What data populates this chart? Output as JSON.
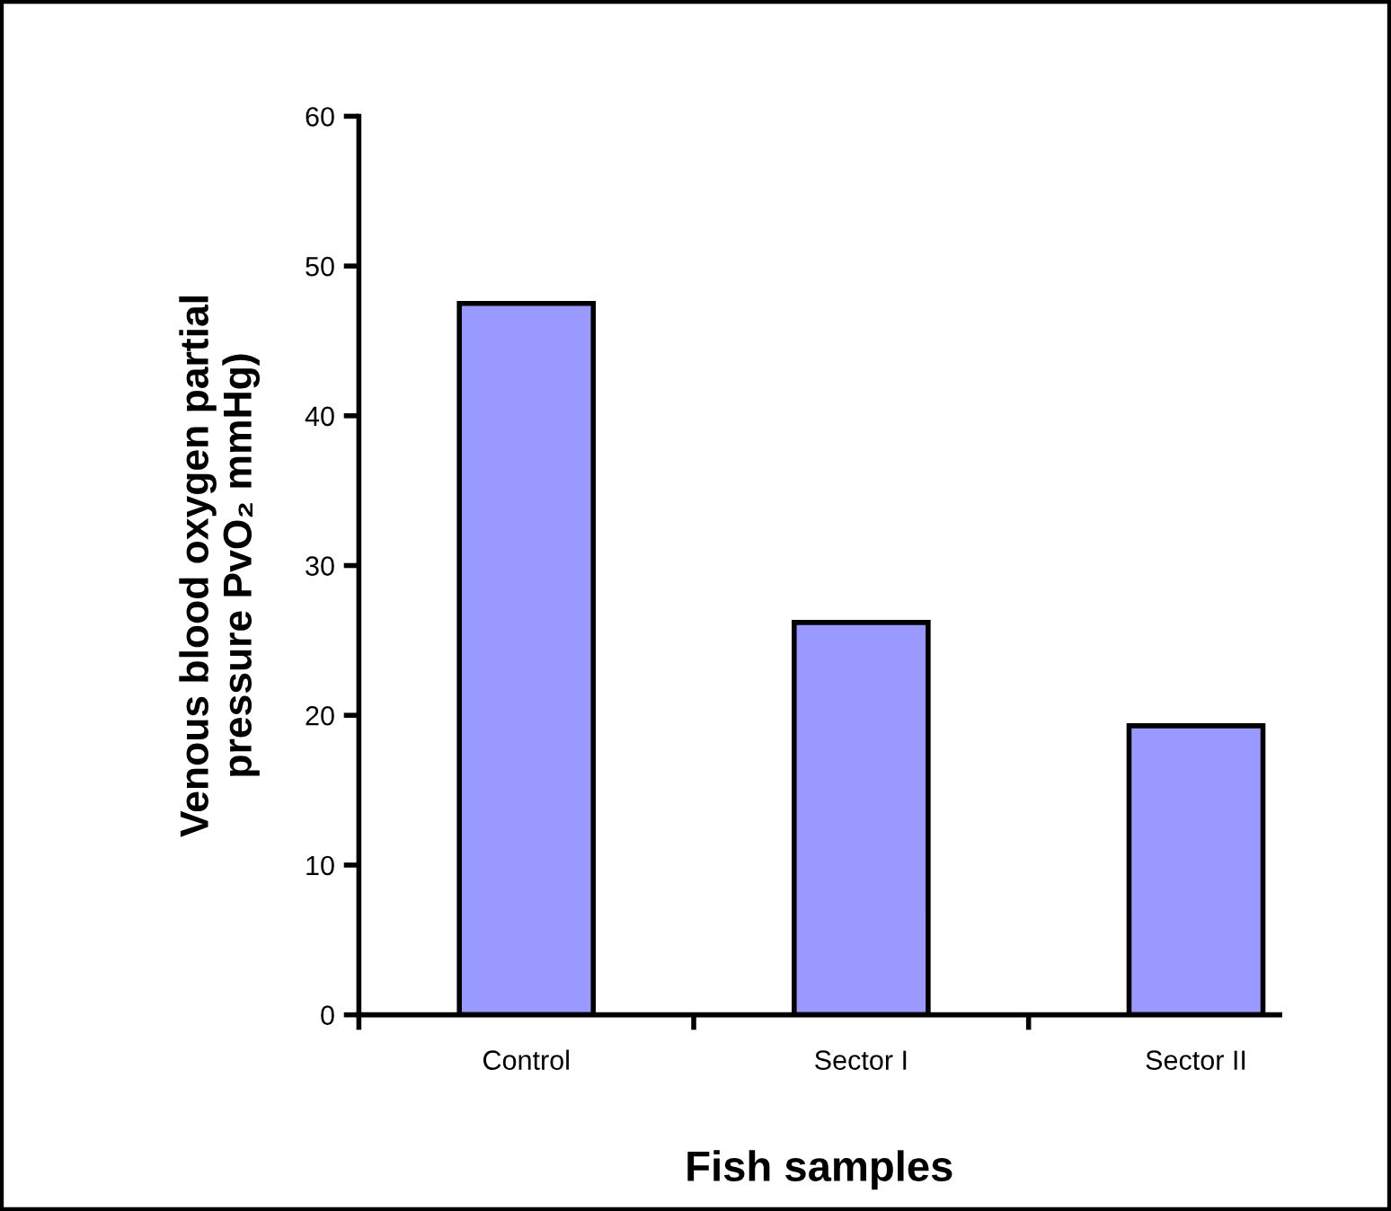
{
  "chart_data": {
    "type": "bar",
    "categories": [
      "Control",
      "Sector I",
      "Sector II"
    ],
    "values": [
      47.5,
      26.2,
      19.3
    ],
    "color": "#9999ff",
    "xlabel": "Fish samples",
    "ylabel": "Venous blood oxygen partial\npressure PvO₂ mmHg)",
    "ylim": [
      0,
      60
    ],
    "yticks": [
      0,
      10,
      20,
      30,
      40,
      50,
      60
    ],
    "grid": false,
    "legend": false
  }
}
